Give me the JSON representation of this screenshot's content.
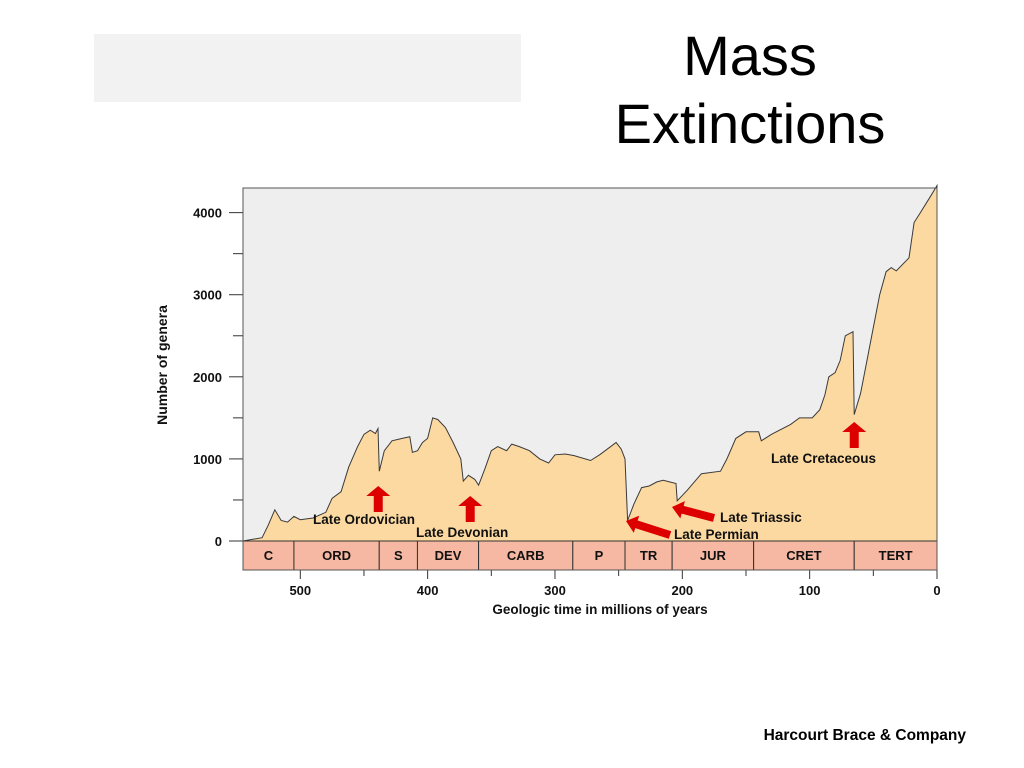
{
  "slide": {
    "title_line1": "Mass",
    "title_line2": "Extinctions",
    "credit": "Harcourt Brace & Company"
  },
  "colors": {
    "area_fill": "#fcd9a0",
    "plot_background": "#eeeeee",
    "period_band": "#f6b8a2",
    "arrow": "#dd0000"
  },
  "chart_data": {
    "type": "area",
    "title": "",
    "xlabel": "Geologic time in millions of years",
    "ylabel": "Number of genera",
    "xlim": [
      545,
      0
    ],
    "ylim": [
      0,
      4300
    ],
    "x_ticks": [
      500,
      400,
      300,
      200,
      100,
      0
    ],
    "y_ticks": [
      0,
      1000,
      2000,
      3000,
      4000
    ],
    "grid": false,
    "series": [
      {
        "points": [
          [
            545,
            0
          ],
          [
            530,
            40
          ],
          [
            525,
            200
          ],
          [
            520,
            380
          ],
          [
            515,
            250
          ],
          [
            510,
            230
          ],
          [
            505,
            300
          ],
          [
            500,
            260
          ],
          [
            490,
            280
          ],
          [
            480,
            350
          ],
          [
            475,
            520
          ],
          [
            468,
            600
          ],
          [
            462,
            900
          ],
          [
            455,
            1150
          ],
          [
            450,
            1300
          ],
          [
            445,
            1350
          ],
          [
            441,
            1310
          ],
          [
            439,
            1370
          ],
          [
            438,
            850
          ],
          [
            434,
            1100
          ],
          [
            428,
            1220
          ],
          [
            420,
            1250
          ],
          [
            414,
            1270
          ],
          [
            412,
            1080
          ],
          [
            408,
            1100
          ],
          [
            404,
            1200
          ],
          [
            400,
            1250
          ],
          [
            396,
            1500
          ],
          [
            392,
            1480
          ],
          [
            386,
            1380
          ],
          [
            380,
            1200
          ],
          [
            374,
            1000
          ],
          [
            372,
            730
          ],
          [
            368,
            800
          ],
          [
            363,
            750
          ],
          [
            360,
            680
          ],
          [
            355,
            880
          ],
          [
            350,
            1100
          ],
          [
            345,
            1150
          ],
          [
            338,
            1100
          ],
          [
            334,
            1180
          ],
          [
            328,
            1150
          ],
          [
            320,
            1100
          ],
          [
            312,
            1000
          ],
          [
            305,
            950
          ],
          [
            300,
            1050
          ],
          [
            292,
            1060
          ],
          [
            285,
            1040
          ],
          [
            272,
            980
          ],
          [
            265,
            1050
          ],
          [
            258,
            1130
          ],
          [
            252,
            1200
          ],
          [
            248,
            1120
          ],
          [
            245,
            1000
          ],
          [
            243,
            250
          ],
          [
            238,
            450
          ],
          [
            232,
            650
          ],
          [
            226,
            670
          ],
          [
            220,
            720
          ],
          [
            215,
            740
          ],
          [
            210,
            720
          ],
          [
            205,
            700
          ],
          [
            204,
            490
          ],
          [
            196,
            620
          ],
          [
            185,
            820
          ],
          [
            170,
            850
          ],
          [
            165,
            1000
          ],
          [
            158,
            1250
          ],
          [
            150,
            1330
          ],
          [
            140,
            1330
          ],
          [
            138,
            1220
          ],
          [
            130,
            1300
          ],
          [
            115,
            1420
          ],
          [
            108,
            1500
          ],
          [
            98,
            1500
          ],
          [
            92,
            1600
          ],
          [
            88,
            1780
          ],
          [
            85,
            2000
          ],
          [
            80,
            2050
          ],
          [
            76,
            2200
          ],
          [
            72,
            2500
          ],
          [
            66,
            2550
          ],
          [
            65,
            1540
          ],
          [
            60,
            1800
          ],
          [
            55,
            2200
          ],
          [
            50,
            2600
          ],
          [
            45,
            3000
          ],
          [
            40,
            3280
          ],
          [
            36,
            3330
          ],
          [
            32,
            3290
          ],
          [
            22,
            3450
          ],
          [
            18,
            3880
          ],
          [
            13,
            4000
          ],
          [
            5,
            4200
          ],
          [
            0,
            4330
          ]
        ]
      }
    ],
    "periods": [
      {
        "label": "C",
        "start": 545,
        "end": 505
      },
      {
        "label": "ORD",
        "start": 505,
        "end": 438
      },
      {
        "label": "S",
        "start": 438,
        "end": 408
      },
      {
        "label": "DEV",
        "start": 408,
        "end": 360
      },
      {
        "label": "CARB",
        "start": 360,
        "end": 286
      },
      {
        "label": "P",
        "start": 286,
        "end": 245
      },
      {
        "label": "TR",
        "start": 245,
        "end": 208
      },
      {
        "label": "JUR",
        "start": 208,
        "end": 144
      },
      {
        "label": "CRET",
        "start": 144,
        "end": 65
      },
      {
        "label": "TERT",
        "start": 65,
        "end": 0
      }
    ],
    "annotations": [
      {
        "label": "Late Ordovician",
        "x": 438
      },
      {
        "label": "Late Devonian",
        "x": 365
      },
      {
        "label": "Late Permian",
        "x": 245
      },
      {
        "label": "Late Triassic",
        "x": 208
      },
      {
        "label": "Late Cretaceous",
        "x": 65
      }
    ]
  }
}
